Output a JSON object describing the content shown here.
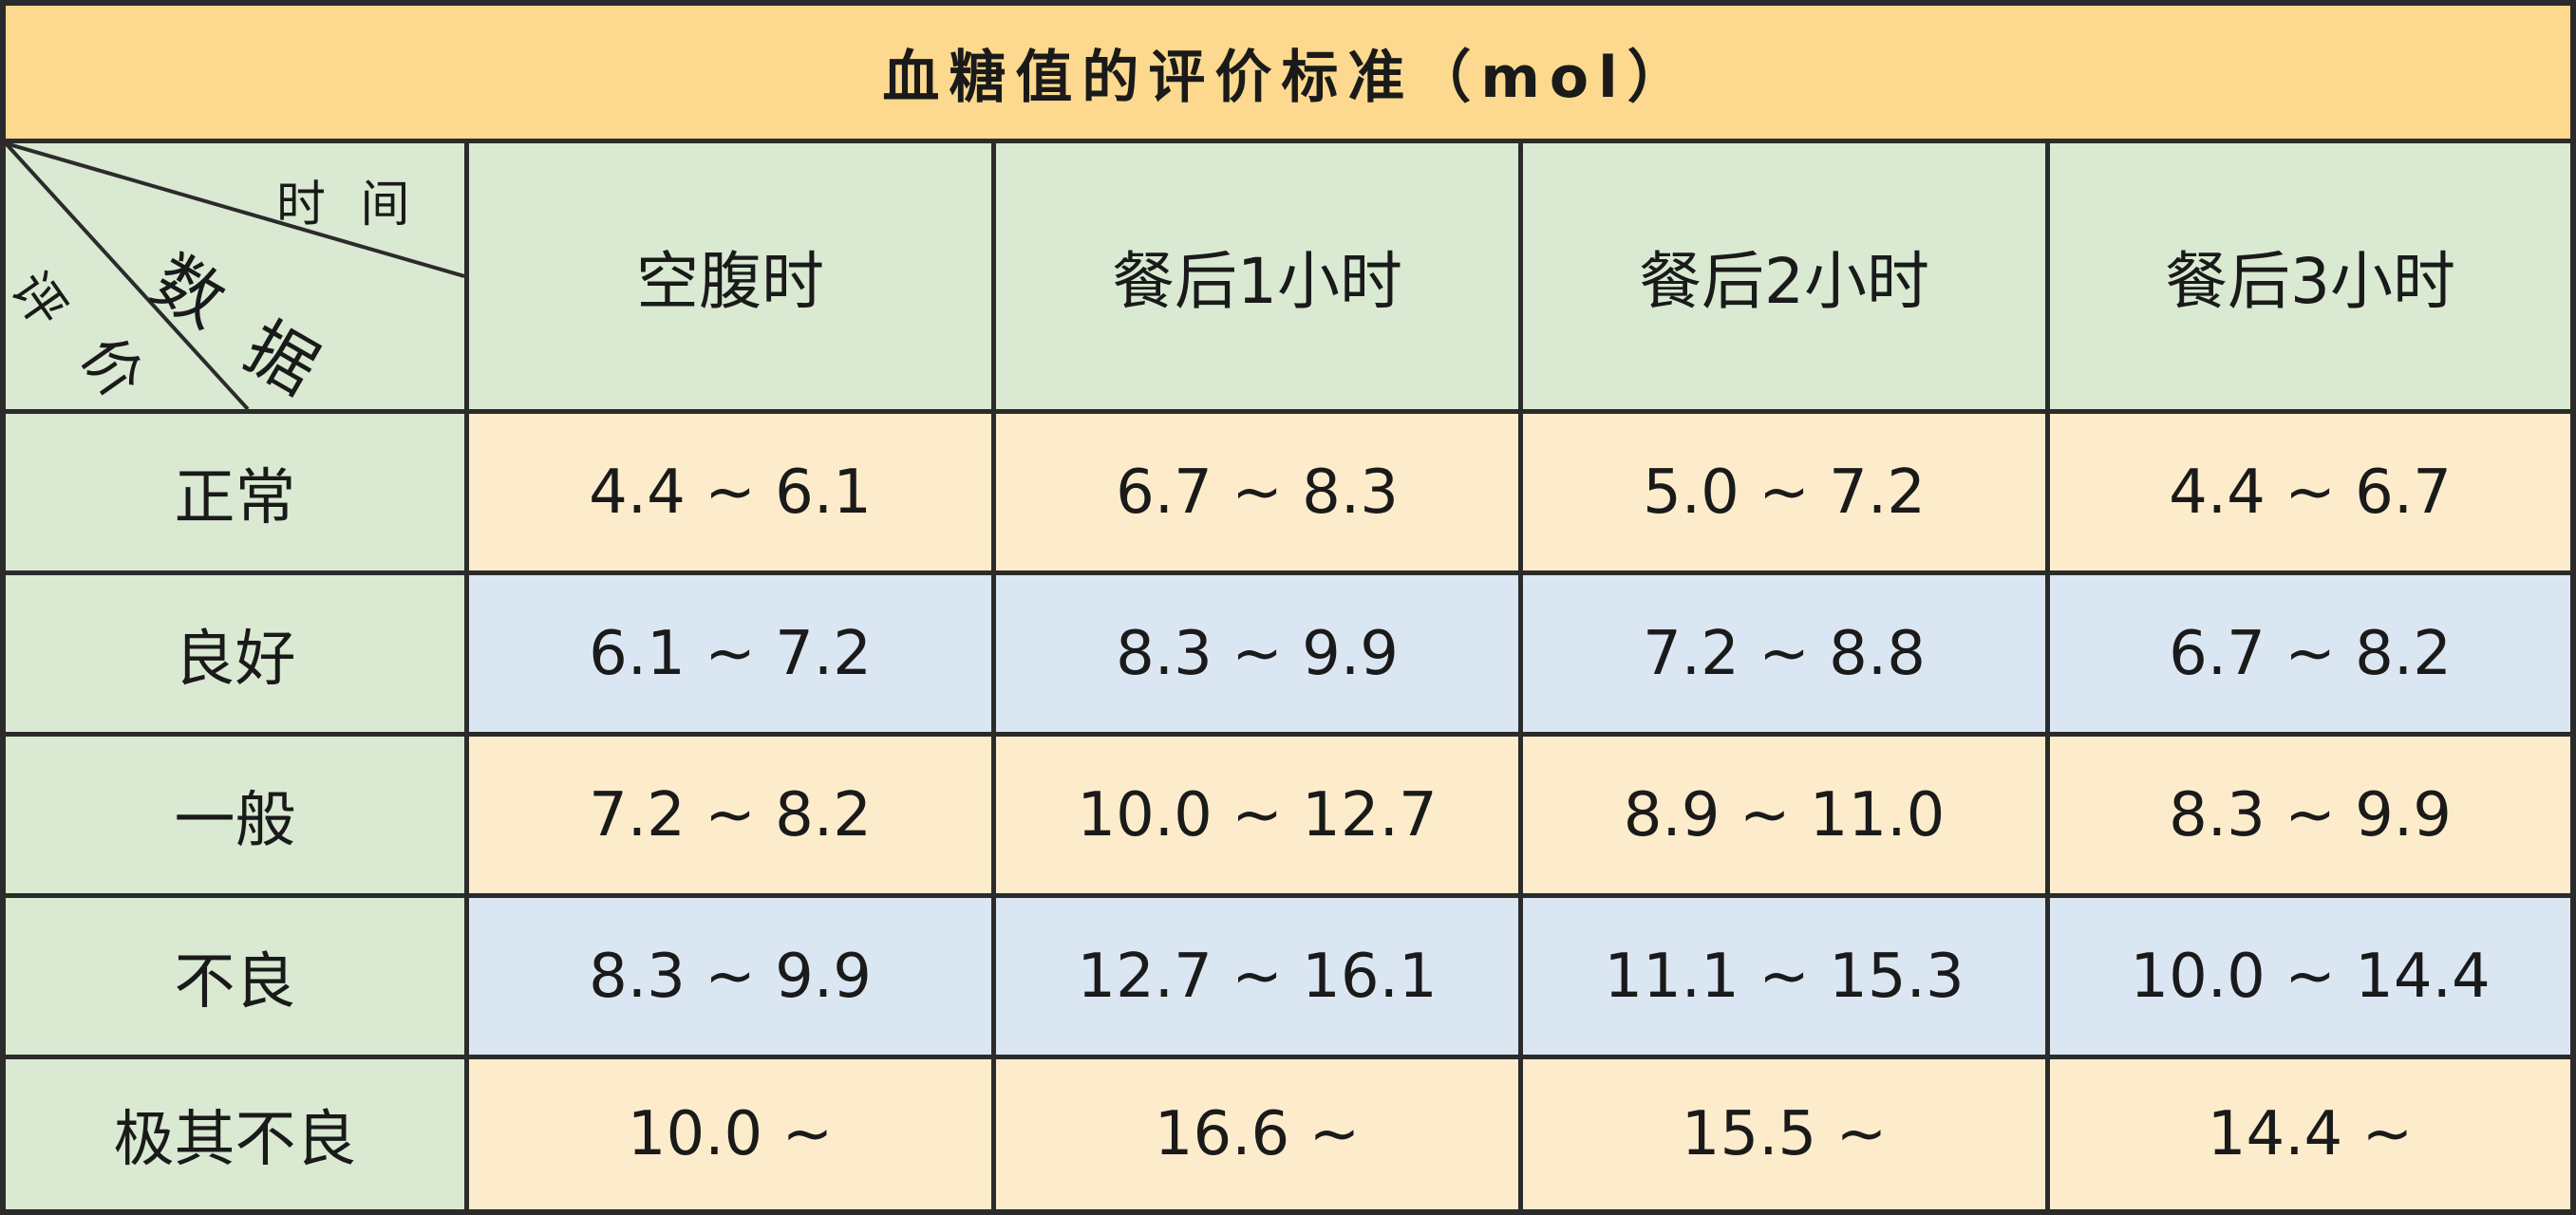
{
  "title": "血糖值的评价标准（mol）",
  "corner": {
    "time": "时 间",
    "data_1": "数",
    "data_2": "据",
    "eval_1": "评",
    "eval_2": "价"
  },
  "columns": [
    "空腹时",
    "餐后1小时",
    "餐后2小时",
    "餐后3小时"
  ],
  "rows": [
    {
      "label": "正常",
      "values": [
        "4.4 ~ 6.1",
        "6.7 ~ 8.3",
        "5.0 ~ 7.2",
        "4.4 ~ 6.7"
      ]
    },
    {
      "label": "良好",
      "values": [
        "6.1 ~ 7.2",
        "8.3 ~ 9.9",
        "7.2 ~ 8.8",
        "6.7 ~ 8.2"
      ]
    },
    {
      "label": "一般",
      "values": [
        "7.2 ~ 8.2",
        "10.0 ~ 12.7",
        "8.9 ~ 11.0",
        "8.3 ~ 9.9"
      ]
    },
    {
      "label": "不良",
      "values": [
        "8.3 ~ 9.9",
        "12.7 ~ 16.1",
        "11.1 ~ 15.3",
        "10.0 ~ 14.4"
      ]
    },
    {
      "label": "极其不良",
      "values": [
        "10.0 ~",
        "16.6 ~",
        "15.5 ~",
        "14.4 ~"
      ]
    }
  ],
  "colors": {
    "title_bg": "#fcd98e",
    "label_bg": "#d9e9d2",
    "row_yellow": "#fdeccb",
    "row_blue": "#dbe6f3",
    "border": "#2b2b2b"
  }
}
